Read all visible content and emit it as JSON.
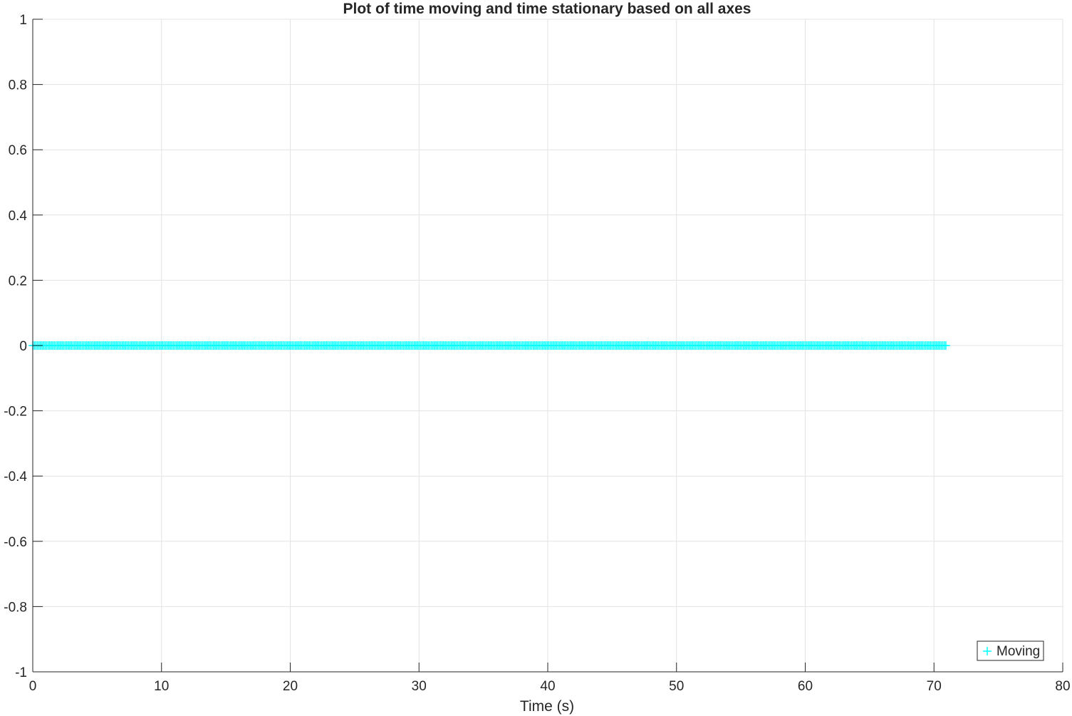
{
  "chart_data": {
    "type": "scatter",
    "title": "Plot of time moving and time stationary based on all axes",
    "xlabel": "Time (s)",
    "ylabel": "",
    "xlim": [
      0,
      80
    ],
    "ylim": [
      -1,
      1
    ],
    "xticks": [
      0,
      10,
      20,
      30,
      40,
      50,
      60,
      70,
      80
    ],
    "xtick_labels": [
      "0",
      "10",
      "20",
      "30",
      "40",
      "50",
      "60",
      "70",
      "80"
    ],
    "yticks": [
      -1,
      -0.8,
      -0.6,
      -0.4,
      -0.2,
      0,
      0.2,
      0.4,
      0.6,
      0.8,
      1
    ],
    "ytick_labels": [
      "-1",
      "-0.8",
      "-0.6",
      "-0.4",
      "-0.2",
      "0",
      "0.2",
      "0.4",
      "0.6",
      "0.8",
      "1"
    ],
    "grid": true,
    "legend_position": "bottom-right",
    "series": [
      {
        "name": "Moving",
        "marker": "+",
        "color": "#00ffff",
        "x_start": 0,
        "x_end": 71,
        "y": 0
      }
    ]
  }
}
